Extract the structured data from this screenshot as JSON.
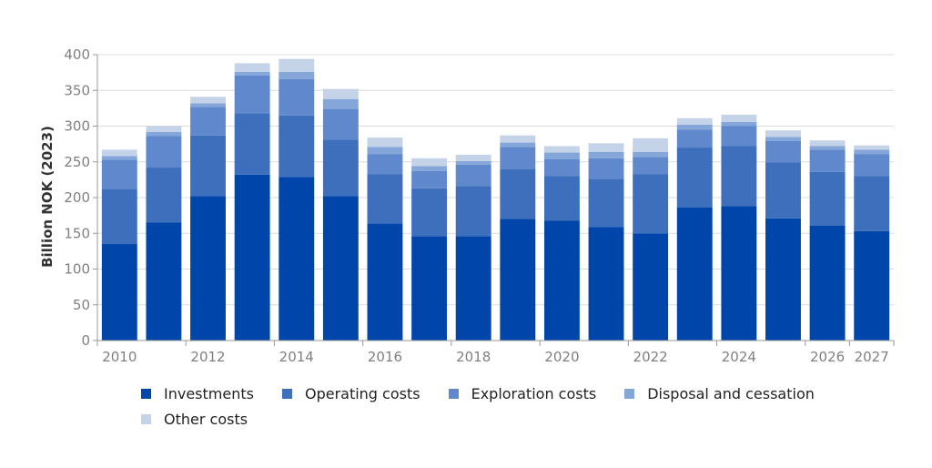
{
  "chart_data": {
    "type": "bar",
    "stacked": true,
    "title": "",
    "xlabel": "",
    "ylabel": "Billion NOK (2023)",
    "ylim": [
      0,
      400
    ],
    "yticks": [
      0,
      50,
      100,
      150,
      200,
      250,
      300,
      350,
      400
    ],
    "grid": "horizontal",
    "legend_position": "bottom",
    "categories": [
      "2010",
      "2011",
      "2012",
      "2013",
      "2014",
      "2015",
      "2016",
      "2017",
      "2018",
      "2019",
      "2020",
      "2021",
      "2022",
      "2023",
      "2024",
      "2025",
      "2026",
      "2027"
    ],
    "xtick_labels": [
      "2010",
      "2012",
      "2014",
      "2016",
      "2018",
      "2020",
      "2022",
      "2024",
      "2026",
      "2027"
    ],
    "series": [
      {
        "name": "Investments",
        "color": "#0046aa",
        "values": [
          135,
          165,
          202,
          232,
          229,
          202,
          164,
          146,
          146,
          170,
          168,
          159,
          150,
          186,
          188,
          171,
          161,
          153
        ]
      },
      {
        "name": "Operating costs",
        "color": "#3d6fbc",
        "values": [
          77,
          77,
          85,
          86,
          86,
          79,
          69,
          67,
          70,
          70,
          62,
          67,
          83,
          84,
          84,
          78,
          75,
          77
        ]
      },
      {
        "name": "Exploration costs",
        "color": "#5f89cc",
        "values": [
          41,
          44,
          40,
          53,
          51,
          43,
          28,
          24,
          30,
          31,
          24,
          29,
          24,
          25,
          28,
          30,
          31,
          31
        ]
      },
      {
        "name": "Disposal and cessation",
        "color": "#84a6d9",
        "values": [
          5,
          6,
          5,
          5,
          10,
          14,
          10,
          7,
          5,
          6,
          9,
          9,
          7,
          7,
          6,
          6,
          5,
          6
        ]
      },
      {
        "name": "Other costs",
        "color": "#c5d3e8",
        "values": [
          9,
          8,
          9,
          12,
          18,
          14,
          13,
          11,
          9,
          10,
          9,
          12,
          19,
          9,
          10,
          9,
          8,
          6
        ]
      }
    ]
  }
}
